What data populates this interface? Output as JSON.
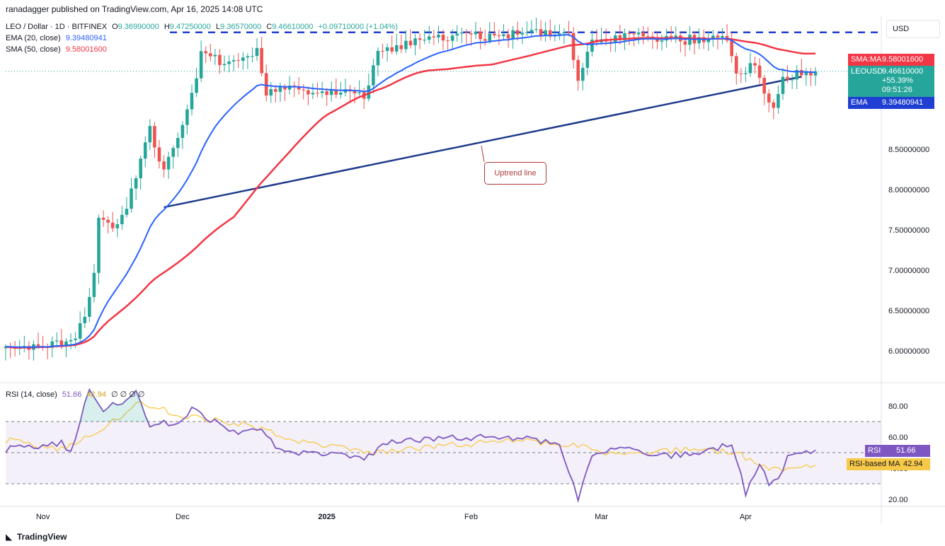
{
  "header": {
    "publisher": "ranadagger published on TradingView.com, Apr 16, 2025 14:08 UTC"
  },
  "legend": {
    "symbol": "LEO / Dollar · 1D · BITFINEX",
    "open_label": "O",
    "open": "9.36990000",
    "high_label": "H",
    "high": "9.47250000",
    "low_label": "L",
    "low": "9.36570000",
    "close_label": "C",
    "close": "9.46610000",
    "change": "+0.09710000 (+1.04%)",
    "ema_label": "EMA (20, close)",
    "ema_value": "9.39480941",
    "sma_label": "SMA (50, close)",
    "sma_value": "9.58001600"
  },
  "currency": "USD",
  "price_tags": {
    "sma_label": "SMA:MA",
    "sma_value": "9.58001600",
    "leo_label": "LEOUSD",
    "leo_value": "9.46610000",
    "leo_change": "+55.39%",
    "leo_countdown": "09:51:26",
    "ema_label": "EMA",
    "ema_value": "9.39480941"
  },
  "rsi": {
    "label": "RSI (14, close)",
    "value": "51.66",
    "ma_value": "42.94",
    "extra": "∅ ∅ ∅ ∅",
    "tag_rsi_label": "RSI",
    "tag_rsi_value": "51.66",
    "tag_ma_label": "RSI-based MA",
    "tag_ma_value": "42.94"
  },
  "annotation": {
    "uptrend": "Uptrend line"
  },
  "footer": {
    "brand": "TradingView"
  },
  "colors": {
    "up": "#26a69a",
    "down": "#ef5350",
    "ema": "#2962ff",
    "sma": "#f23645",
    "trend": "#1e3a8a",
    "rsi": "#7e57c2",
    "rsi_ma": "#f7c948",
    "tag_blue": "#1e3fd1"
  },
  "chart_data": [
    {
      "type": "candlestick",
      "title": "LEO / Dollar · 1D · BITFINEX",
      "x_ticks": [
        "Nov",
        "Dec",
        "2025",
        "Feb",
        "Mar",
        "Apr"
      ],
      "y_ticks": [
        "6.00000000",
        "6.50000000",
        "7.00000000",
        "7.50000000",
        "8.00000000",
        "8.50000000"
      ],
      "ylim": [
        5.6,
        10.0
      ],
      "resistance_level": 9.95,
      "uptrend_line": {
        "start": [
          "Nov 27",
          7.78
        ],
        "end": [
          "Apr 13",
          9.4
        ]
      },
      "series": [
        {
          "name": "EMA (20, close)",
          "last": 9.3948
        },
        {
          "name": "SMA (50, close)",
          "last": 9.58
        }
      ],
      "anchors": [
        [
          "Oct 24",
          6.05
        ],
        [
          "Nov 7",
          6.08
        ],
        [
          "Nov 10",
          6.4
        ],
        [
          "Nov 12",
          7.0
        ],
        [
          "Nov 13",
          7.65
        ],
        [
          "Nov 16",
          7.55
        ],
        [
          "Nov 19",
          7.75
        ],
        [
          "Nov 22",
          8.4
        ],
        [
          "Nov 24",
          8.75
        ],
        [
          "Nov 27",
          8.2
        ],
        [
          "Nov 30",
          8.7
        ],
        [
          "Dec 3",
          9.15
        ],
        [
          "Dec 5",
          9.7
        ],
        [
          "Dec 9",
          9.6
        ],
        [
          "Dec 13",
          9.55
        ],
        [
          "Dec 17",
          9.7
        ],
        [
          "Dec 19",
          9.2
        ],
        [
          "Dec 24",
          9.3
        ],
        [
          "Dec 30",
          9.15
        ],
        [
          "Jan 5",
          9.25
        ],
        [
          "Jan 9",
          9.15
        ],
        [
          "Jan 12",
          9.7
        ],
        [
          "Jan 18",
          9.8
        ],
        [
          "Jan 27",
          9.9
        ],
        [
          "Feb 4",
          9.9
        ],
        [
          "Feb 12",
          9.95
        ],
        [
          "Feb 22",
          9.9
        ],
        [
          "Feb 24",
          9.35
        ],
        [
          "Feb 27",
          9.8
        ],
        [
          "Mar 8",
          9.92
        ],
        [
          "Mar 18",
          9.85
        ],
        [
          "Mar 28",
          9.9
        ],
        [
          "Mar 30",
          9.4
        ],
        [
          "Apr 3",
          9.55
        ],
        [
          "Apr 5",
          9.15
        ],
        [
          "Apr 7",
          9.05
        ],
        [
          "Apr 9",
          9.4
        ],
        [
          "Apr 16",
          9.466
        ]
      ]
    },
    {
      "type": "line",
      "title": "RSI (14, close)",
      "y_ticks": [
        "80.00",
        "60.00",
        "40.00",
        "20.00"
      ],
      "bands": [
        30,
        70
      ],
      "ylim": [
        15,
        95
      ],
      "series": [
        {
          "name": "RSI",
          "last": 51.66
        },
        {
          "name": "RSI-based MA",
          "last": 42.94
        }
      ],
      "rsi_anchors": [
        [
          "Oct 24",
          52
        ],
        [
          "Nov 5",
          56
        ],
        [
          "Nov 7",
          50
        ],
        [
          "Nov 11",
          92
        ],
        [
          "Nov 14",
          78
        ],
        [
          "Nov 19",
          84
        ],
        [
          "Nov 21",
          88
        ],
        [
          "Nov 24",
          68
        ],
        [
          "Nov 30",
          70
        ],
        [
          "Dec 3",
          78
        ],
        [
          "Dec 9",
          68
        ],
        [
          "Dec 14",
          62
        ],
        [
          "Dec 17",
          66
        ],
        [
          "Dec 21",
          54
        ],
        [
          "Dec 26",
          50
        ],
        [
          "Jan 1",
          49
        ],
        [
          "Jan 9",
          46
        ],
        [
          "Jan 14",
          57
        ],
        [
          "Jan 20",
          58
        ],
        [
          "Feb 2",
          60
        ],
        [
          "Feb 12",
          59
        ],
        [
          "Feb 20",
          56
        ],
        [
          "Feb 24",
          20
        ],
        [
          "Feb 27",
          48
        ],
        [
          "Mar 6",
          54
        ],
        [
          "Mar 13",
          48
        ],
        [
          "Mar 22",
          49
        ],
        [
          "Mar 29",
          56
        ],
        [
          "Apr 1",
          24
        ],
        [
          "Apr 4",
          42
        ],
        [
          "Apr 6",
          30
        ],
        [
          "Apr 8",
          33
        ],
        [
          "Apr 10",
          48
        ],
        [
          "Apr 16",
          51.66
        ]
      ],
      "ma_anchors": [
        [
          "Oct 24",
          58
        ],
        [
          "Nov 5",
          52
        ],
        [
          "Nov 15",
          68
        ],
        [
          "Nov 22",
          82
        ],
        [
          "Dec 1",
          74
        ],
        [
          "Dec 14",
          68
        ],
        [
          "Dec 28",
          56
        ],
        [
          "Jan 10",
          50
        ],
        [
          "Jan 25",
          54
        ],
        [
          "Feb 10",
          58
        ],
        [
          "Feb 25",
          54
        ],
        [
          "Mar 2",
          49
        ],
        [
          "Mar 20",
          52
        ],
        [
          "Mar 30",
          50
        ],
        [
          "Apr 5",
          40
        ],
        [
          "Apr 12",
          40
        ],
        [
          "Apr 16",
          42.94
        ]
      ]
    }
  ]
}
